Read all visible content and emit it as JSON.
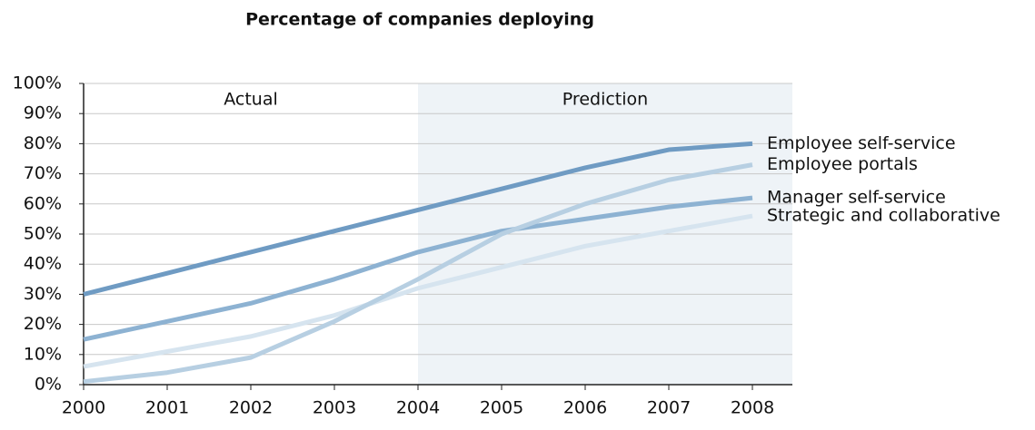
{
  "chart_data": {
    "type": "line",
    "title": "Percentage of companies deploying",
    "x": [
      2000,
      2001,
      2002,
      2003,
      2004,
      2005,
      2006,
      2007,
      2008
    ],
    "xlim": [
      2000,
      2008
    ],
    "xticks": [
      2000,
      2001,
      2002,
      2003,
      2004,
      2005,
      2006,
      2007,
      2008
    ],
    "ylim": [
      0,
      100
    ],
    "yticks": [
      {
        "value": 0,
        "label": "0%"
      },
      {
        "value": 10,
        "label": "10%"
      },
      {
        "value": 20,
        "label": "20%"
      },
      {
        "value": 30,
        "label": "30%"
      },
      {
        "value": 40,
        "label": "40%"
      },
      {
        "value": 50,
        "label": "50%"
      },
      {
        "value": 60,
        "label": "60%"
      },
      {
        "value": 70,
        "label": "70%"
      },
      {
        "value": 80,
        "label": "80%"
      },
      {
        "value": 90,
        "label": "90%"
      },
      {
        "value": 100,
        "label": "100%"
      }
    ],
    "grid": true,
    "annotations": [
      {
        "text": "Actual",
        "from": 2000,
        "to": 2004
      },
      {
        "text": "Prediction",
        "from": 2004,
        "to": 2008,
        "shaded": true
      }
    ],
    "series": [
      {
        "name": "Employee self-service",
        "color": "#6f9bc3",
        "values": [
          30,
          37,
          44,
          51,
          58,
          65,
          72,
          78,
          80
        ]
      },
      {
        "name": "Employee portals",
        "color": "#b7cfe2",
        "values": [
          1,
          4,
          9,
          21,
          35,
          50,
          60,
          68,
          73
        ]
      },
      {
        "name": "Manager self-service",
        "color": "#8db2d2",
        "values": [
          15,
          21,
          27,
          35,
          44,
          51,
          55,
          59,
          62
        ]
      },
      {
        "name": "Strategic and collaborative",
        "color": "#d6e4ef",
        "values": [
          6,
          11,
          16,
          23,
          32,
          39,
          46,
          51,
          56
        ]
      }
    ]
  }
}
